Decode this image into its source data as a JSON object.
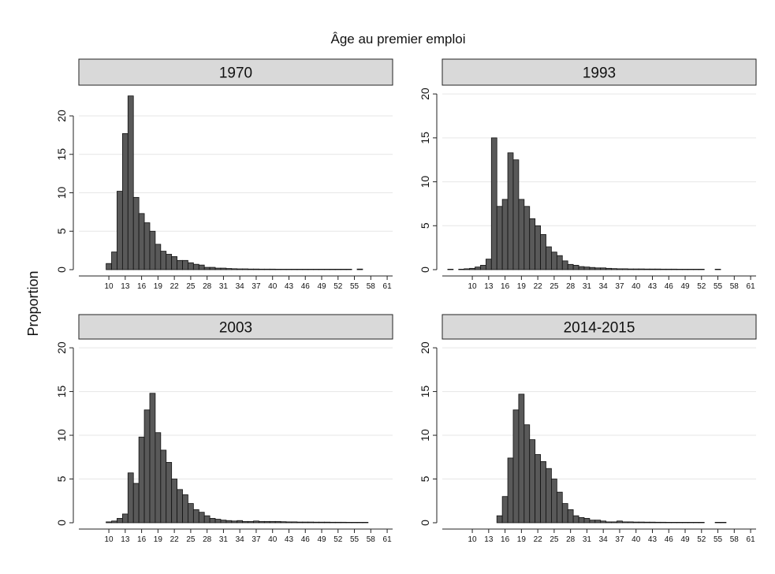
{
  "figure": {
    "title": "Âge au premier emploi",
    "ylabel": "Proportion"
  },
  "colors": {
    "bar_fill": "#595959",
    "bar_stroke": "#111111",
    "strip_fill": "#d9d9d9",
    "grid": "#e6e6e6"
  },
  "chart_data": [
    {
      "type": "bar",
      "panel": "1970",
      "xlabel": "",
      "ylabel": "Proportion",
      "x_ticks": [
        10,
        13,
        16,
        19,
        22,
        25,
        28,
        31,
        34,
        37,
        40,
        43,
        46,
        49,
        52,
        55,
        58,
        61
      ],
      "y_ticks": [
        0,
        5,
        10,
        15,
        20
      ],
      "grid": true,
      "x_range": [
        4.5,
        62
      ],
      "ylim": [
        0,
        24
      ],
      "x": [
        10,
        11,
        12,
        13,
        14,
        15,
        16,
        17,
        18,
        19,
        20,
        21,
        22,
        23,
        24,
        25,
        26,
        27,
        28,
        29,
        30,
        31,
        32,
        33,
        34,
        35,
        36,
        37,
        38,
        39,
        40,
        41,
        42,
        43,
        44,
        45,
        46,
        47,
        48,
        49,
        50,
        51,
        52,
        53,
        54,
        56
      ],
      "values": [
        0.8,
        2.3,
        10.2,
        17.7,
        22.6,
        9.4,
        7.3,
        6.1,
        5.0,
        3.3,
        2.4,
        2.0,
        1.7,
        1.2,
        1.2,
        0.9,
        0.7,
        0.6,
        0.3,
        0.3,
        0.2,
        0.2,
        0.15,
        0.12,
        0.1,
        0.1,
        0.08,
        0.08,
        0.07,
        0.07,
        0.07,
        0.06,
        0.06,
        0.06,
        0.05,
        0.05,
        0.05,
        0.05,
        0.05,
        0.05,
        0.05,
        0.04,
        0.04,
        0.04,
        0.04,
        0.08
      ]
    },
    {
      "type": "bar",
      "panel": "1993",
      "xlabel": "",
      "ylabel": "",
      "x_ticks": [
        10,
        13,
        16,
        19,
        22,
        25,
        28,
        31,
        34,
        37,
        40,
        43,
        46,
        49,
        52,
        55,
        58,
        61
      ],
      "y_ticks": [
        0,
        5,
        10,
        15,
        20
      ],
      "grid": true,
      "x_range": [
        4.5,
        62
      ],
      "ylim": [
        0,
        21
      ],
      "x": [
        6,
        8,
        9,
        10,
        11,
        12,
        13,
        14,
        15,
        16,
        17,
        18,
        19,
        20,
        21,
        22,
        23,
        24,
        25,
        26,
        27,
        28,
        29,
        30,
        31,
        32,
        33,
        34,
        35,
        36,
        37,
        38,
        39,
        40,
        41,
        42,
        43,
        44,
        45,
        46,
        47,
        48,
        49,
        50,
        51,
        52,
        55
      ],
      "values": [
        0.05,
        0.05,
        0.1,
        0.15,
        0.3,
        0.5,
        1.2,
        15.0,
        7.2,
        8.0,
        13.3,
        12.5,
        8.0,
        7.2,
        5.8,
        5.0,
        4.0,
        2.6,
        2.0,
        1.6,
        1.0,
        0.6,
        0.5,
        0.35,
        0.3,
        0.25,
        0.2,
        0.2,
        0.15,
        0.12,
        0.1,
        0.1,
        0.08,
        0.08,
        0.08,
        0.07,
        0.07,
        0.07,
        0.06,
        0.06,
        0.06,
        0.05,
        0.05,
        0.05,
        0.05,
        0.05,
        0.05
      ]
    },
    {
      "type": "bar",
      "panel": "2003",
      "xlabel": "",
      "ylabel": "",
      "x_ticks": [
        10,
        13,
        16,
        19,
        22,
        25,
        28,
        31,
        34,
        37,
        40,
        43,
        46,
        49,
        52,
        55,
        58,
        61
      ],
      "y_ticks": [
        0,
        5,
        10,
        15,
        20
      ],
      "grid": true,
      "x_range": [
        4.5,
        62
      ],
      "ylim": [
        0,
        21
      ],
      "x": [
        10,
        11,
        12,
        13,
        14,
        15,
        16,
        17,
        18,
        19,
        20,
        21,
        22,
        23,
        24,
        25,
        26,
        27,
        28,
        29,
        30,
        31,
        32,
        33,
        34,
        35,
        36,
        37,
        38,
        39,
        40,
        41,
        42,
        43,
        44,
        45,
        46,
        47,
        48,
        49,
        50,
        51,
        52,
        53,
        54,
        55,
        56,
        57
      ],
      "values": [
        0.1,
        0.2,
        0.5,
        1.0,
        5.7,
        4.5,
        9.8,
        12.9,
        14.8,
        10.3,
        8.3,
        6.9,
        5.0,
        3.8,
        3.2,
        2.2,
        1.5,
        1.2,
        0.8,
        0.5,
        0.4,
        0.3,
        0.25,
        0.2,
        0.25,
        0.15,
        0.15,
        0.2,
        0.15,
        0.15,
        0.15,
        0.15,
        0.12,
        0.1,
        0.1,
        0.08,
        0.08,
        0.08,
        0.07,
        0.07,
        0.07,
        0.06,
        0.06,
        0.06,
        0.05,
        0.05,
        0.05,
        0.05
      ]
    },
    {
      "type": "bar",
      "panel": "2014-2015",
      "xlabel": "",
      "ylabel": "",
      "x_ticks": [
        10,
        13,
        16,
        19,
        22,
        25,
        28,
        31,
        34,
        37,
        40,
        43,
        46,
        49,
        52,
        55,
        58,
        61
      ],
      "y_ticks": [
        0,
        5,
        10,
        15,
        20
      ],
      "grid": true,
      "x_range": [
        4.5,
        62
      ],
      "ylim": [
        0,
        21
      ],
      "x": [
        15,
        16,
        17,
        18,
        19,
        20,
        21,
        22,
        23,
        24,
        25,
        26,
        27,
        28,
        29,
        30,
        31,
        32,
        33,
        34,
        35,
        36,
        37,
        38,
        39,
        40,
        41,
        42,
        43,
        44,
        45,
        46,
        47,
        48,
        49,
        50,
        51,
        52,
        55,
        56
      ],
      "values": [
        0.8,
        3.0,
        7.4,
        12.9,
        14.7,
        11.2,
        9.5,
        7.8,
        7.0,
        6.2,
        5.0,
        3.5,
        2.2,
        1.5,
        0.8,
        0.6,
        0.5,
        0.3,
        0.3,
        0.2,
        0.1,
        0.1,
        0.2,
        0.1,
        0.1,
        0.08,
        0.08,
        0.07,
        0.07,
        0.06,
        0.06,
        0.05,
        0.05,
        0.05,
        0.05,
        0.05,
        0.05,
        0.05,
        0.05,
        0.05
      ]
    }
  ]
}
